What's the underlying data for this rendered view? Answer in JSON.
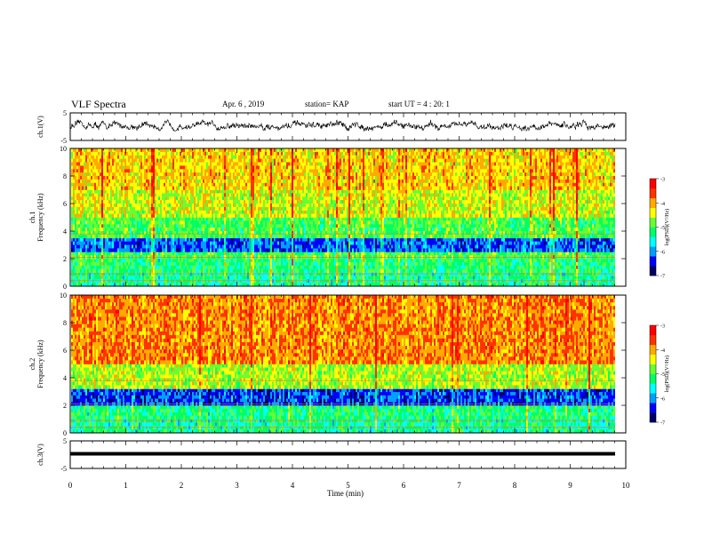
{
  "header": {
    "title": "VLF Spectra",
    "date": "Apr. 6 , 2019",
    "station": "station= KAP",
    "start": "start UT = 4 : 20: 1"
  },
  "colors": {
    "scale": [
      "#000066",
      "#0000ff",
      "#00a0ff",
      "#00ffff",
      "#00ff66",
      "#66ff33",
      "#ffff00",
      "#ffaa00",
      "#ff3300",
      "#ff0000",
      "#ffffff"
    ]
  },
  "chart_data": [
    {
      "id": "ch1-waveform",
      "type": "line",
      "ylabel": "ch.1(V)",
      "ylim": [
        -5,
        5
      ],
      "yticks": [
        "5",
        "-5"
      ],
      "xlim": [
        0,
        10
      ],
      "description_values": {
        "mean": 0.3,
        "amplitude_range": [
          -1.5,
          2.5
        ]
      }
    },
    {
      "id": "ch1-spectrogram",
      "type": "heatmap",
      "ylabel": "ch.1\nFrequency (kHz)",
      "ylim": [
        0,
        10
      ],
      "yticks": [
        "0",
        "2",
        "4",
        "6",
        "8",
        "10"
      ],
      "xlim": [
        0,
        9.8
      ],
      "colorbar": {
        "label": "log(PSD)(V²/Hz)",
        "range": [
          -7,
          -3
        ],
        "ticks": [
          "-3",
          "-4",
          "-5",
          "-6",
          "-7"
        ]
      },
      "bands": [
        {
          "from": 0,
          "to": 1.0,
          "level": -5.3
        },
        {
          "from": 1.0,
          "to": 2.0,
          "level": -5.2
        },
        {
          "from": 2.0,
          "to": 2.5,
          "level": -5.0
        },
        {
          "from": 2.5,
          "to": 3.5,
          "level": -6.2
        },
        {
          "from": 3.5,
          "to": 5.0,
          "level": -5.0
        },
        {
          "from": 5.0,
          "to": 7.0,
          "level": -4.5
        },
        {
          "from": 7.0,
          "to": 10.0,
          "level": -4.2
        }
      ]
    },
    {
      "id": "ch2-spectrogram",
      "type": "heatmap",
      "ylabel": "ch.2\nFrequency (kHz)",
      "ylim": [
        0,
        10
      ],
      "yticks": [
        "0",
        "2",
        "4",
        "6",
        "8",
        "10"
      ],
      "xlim": [
        0,
        9.8
      ],
      "colorbar": {
        "label": "log(PSD)(V²/Hz)",
        "range": [
          -7,
          -3
        ],
        "ticks": [
          "-3",
          "-4",
          "-5",
          "-6",
          "-7"
        ]
      },
      "bands": [
        {
          "from": 0,
          "to": 1.0,
          "level": -5.3
        },
        {
          "from": 1.0,
          "to": 2.0,
          "level": -5.2
        },
        {
          "from": 2.0,
          "to": 3.2,
          "level": -6.3
        },
        {
          "from": 3.2,
          "to": 5.0,
          "level": -4.6
        },
        {
          "from": 5.0,
          "to": 10.0,
          "level": -3.9
        }
      ]
    },
    {
      "id": "ch3-waveform",
      "type": "line",
      "ylabel": "ch.3(V)",
      "ylim": [
        -5,
        5
      ],
      "yticks": [
        "5",
        "-5"
      ],
      "xlim": [
        0,
        10
      ],
      "xlabel": "Time (min)",
      "xticks": [
        "0",
        "1",
        "2",
        "3",
        "4",
        "5",
        "6",
        "7",
        "8",
        "9",
        "10"
      ],
      "constant_value": 0
    }
  ]
}
